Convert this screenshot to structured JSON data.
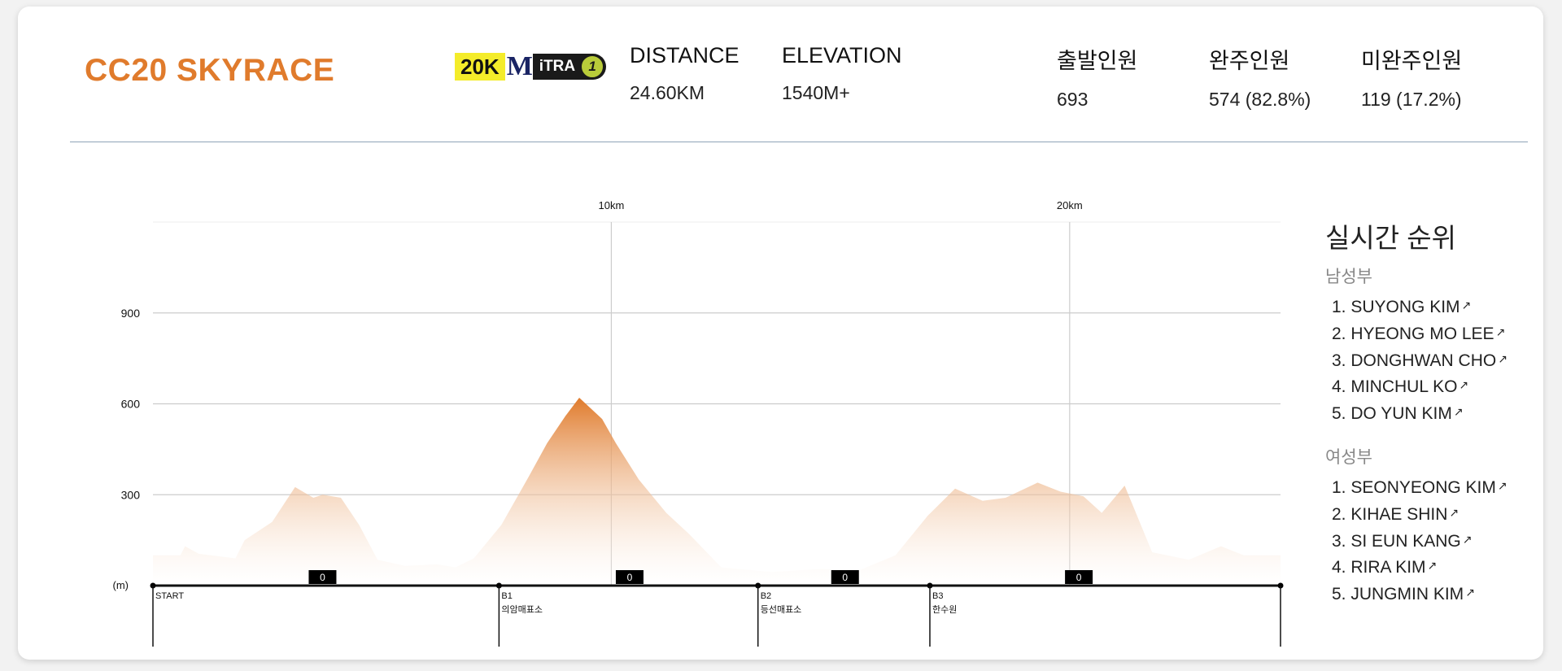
{
  "race": {
    "title": "CC20 SKYRACE"
  },
  "badge": {
    "distance_label": "20K",
    "itra_brand": "M",
    "itra_text": "iTRA",
    "itra_points": "1"
  },
  "stats": [
    {
      "label": "DISTANCE",
      "value": "24.60KM"
    },
    {
      "label": "ELEVATION",
      "value": "1540M+"
    },
    {
      "label": "출발인원",
      "value": "693"
    },
    {
      "label": "완주인원",
      "value": "574 (82.8%)"
    },
    {
      "label": "미완주인원",
      "value": "119 (17.2%)"
    }
  ],
  "ranking": {
    "title": "실시간 순위",
    "groups": [
      {
        "name": "남성부",
        "runners": [
          "1. SUYONG KIM",
          "2. HYEONG MO LEE",
          "3. DONGHWAN CHO",
          "4. MINCHUL KO",
          "5. DO YUN KIM"
        ]
      },
      {
        "name": "여성부",
        "runners": [
          "1. SEONYEONG KIM",
          "2. KIHAE SHIN",
          "3. SI EUN KANG",
          "4. RIRA KIM",
          "5. JUNGMIN KIM"
        ]
      }
    ],
    "link_icon": "arrow-up-right-icon"
  },
  "chart_data": {
    "type": "area",
    "unit_label": "(m)",
    "xlim": [
      0,
      24.6
    ],
    "ylim": [
      0,
      1200
    ],
    "y_ticks": [
      300,
      600,
      900
    ],
    "x_ticks": [
      {
        "x": 10,
        "label": "10km"
      },
      {
        "x": 20,
        "label": "20km"
      }
    ],
    "profile": [
      [
        0.0,
        100
      ],
      [
        0.6,
        100
      ],
      [
        0.7,
        130
      ],
      [
        1.0,
        105
      ],
      [
        1.8,
        90
      ],
      [
        2.0,
        150
      ],
      [
        2.6,
        210
      ],
      [
        3.1,
        325
      ],
      [
        3.5,
        290
      ],
      [
        3.7,
        300
      ],
      [
        4.1,
        290
      ],
      [
        4.5,
        200
      ],
      [
        4.9,
        85
      ],
      [
        5.5,
        65
      ],
      [
        6.2,
        70
      ],
      [
        6.6,
        60
      ],
      [
        7.0,
        90
      ],
      [
        7.6,
        200
      ],
      [
        8.2,
        360
      ],
      [
        8.6,
        470
      ],
      [
        9.0,
        560
      ],
      [
        9.3,
        620
      ],
      [
        9.8,
        550
      ],
      [
        10.1,
        470
      ],
      [
        10.6,
        350
      ],
      [
        11.2,
        240
      ],
      [
        11.7,
        170
      ],
      [
        12.4,
        60
      ],
      [
        13.5,
        45
      ],
      [
        14.6,
        55
      ],
      [
        15.4,
        50
      ],
      [
        16.2,
        100
      ],
      [
        16.9,
        230
      ],
      [
        17.5,
        320
      ],
      [
        18.1,
        280
      ],
      [
        18.6,
        290
      ],
      [
        19.3,
        340
      ],
      [
        19.8,
        310
      ],
      [
        20.3,
        295
      ],
      [
        20.7,
        240
      ],
      [
        21.2,
        330
      ],
      [
        21.8,
        110
      ],
      [
        22.6,
        85
      ],
      [
        23.3,
        130
      ],
      [
        23.8,
        100
      ],
      [
        24.6,
        100
      ]
    ],
    "aid_markers": [
      {
        "x": 3.7,
        "label": "0"
      },
      {
        "x": 10.4,
        "label": "0"
      },
      {
        "x": 15.1,
        "label": "0"
      },
      {
        "x": 20.2,
        "label": "0"
      }
    ],
    "checkpoints": [
      {
        "x": 0.0,
        "code": "START",
        "name": ""
      },
      {
        "x": 7.55,
        "code": "B1",
        "name": "의암매표소"
      },
      {
        "x": 13.2,
        "code": "B2",
        "name": "등선매표소"
      },
      {
        "x": 16.95,
        "code": "B3",
        "name": "한수원"
      },
      {
        "x": 24.6,
        "code": "",
        "name": ""
      }
    ],
    "colors": {
      "fill_top": "#e07b2c",
      "fill_bottom": "#ffffff",
      "grid": "#cccccc",
      "axis": "#111111"
    }
  }
}
